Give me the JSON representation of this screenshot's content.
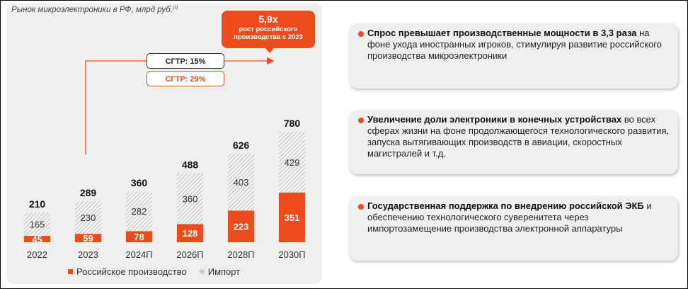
{
  "chart_data": {
    "type": "bar",
    "title": "Рынок микроэлектроники в РФ, млрд руб.",
    "title_footnote": "(1)",
    "categories": [
      "2022",
      "2023",
      "2024П",
      "2026П",
      "2028П",
      "2030П"
    ],
    "series": [
      {
        "name": "Российское производство",
        "values": [
          45,
          59,
          78,
          128,
          223,
          351
        ],
        "color": "#ec4b1c"
      },
      {
        "name": "Импорт",
        "values": [
          165,
          230,
          282,
          360,
          403,
          429
        ],
        "color": "hatched-gray"
      }
    ],
    "totals": [
      210,
      289,
      360,
      488,
      626,
      780
    ],
    "stacked": true,
    "ylim": [
      0,
      800
    ],
    "legend": [
      "Российское производство",
      "Импорт"
    ],
    "annotations": {
      "callout_big": "5,9x",
      "callout_small": "рост российского производства с 2023",
      "cagr_total": "СГТР: 15%",
      "cagr_russian": "СГТР: 29%"
    }
  },
  "cards": [
    {
      "bold": "Спрос превышает производственные мощности в 3,3 раза",
      "text": " на фоне ухода иностранных игроков, стимулируя развитие российского производства микроэлектроники"
    },
    {
      "bold": "Увеличение доли электроники в конечных устройствах",
      "text": " во всех сферах жизни на фоне продолжающегося технологического развития, запуска вытягивающих производств в авиации, скоростных магистралей и т.д."
    },
    {
      "bold": "Государственная поддержка по внедрению российской ЭКБ",
      "text": " и обеспечению технологического суверенитета через импортозамещение производства электронной аппаратуры"
    }
  ]
}
